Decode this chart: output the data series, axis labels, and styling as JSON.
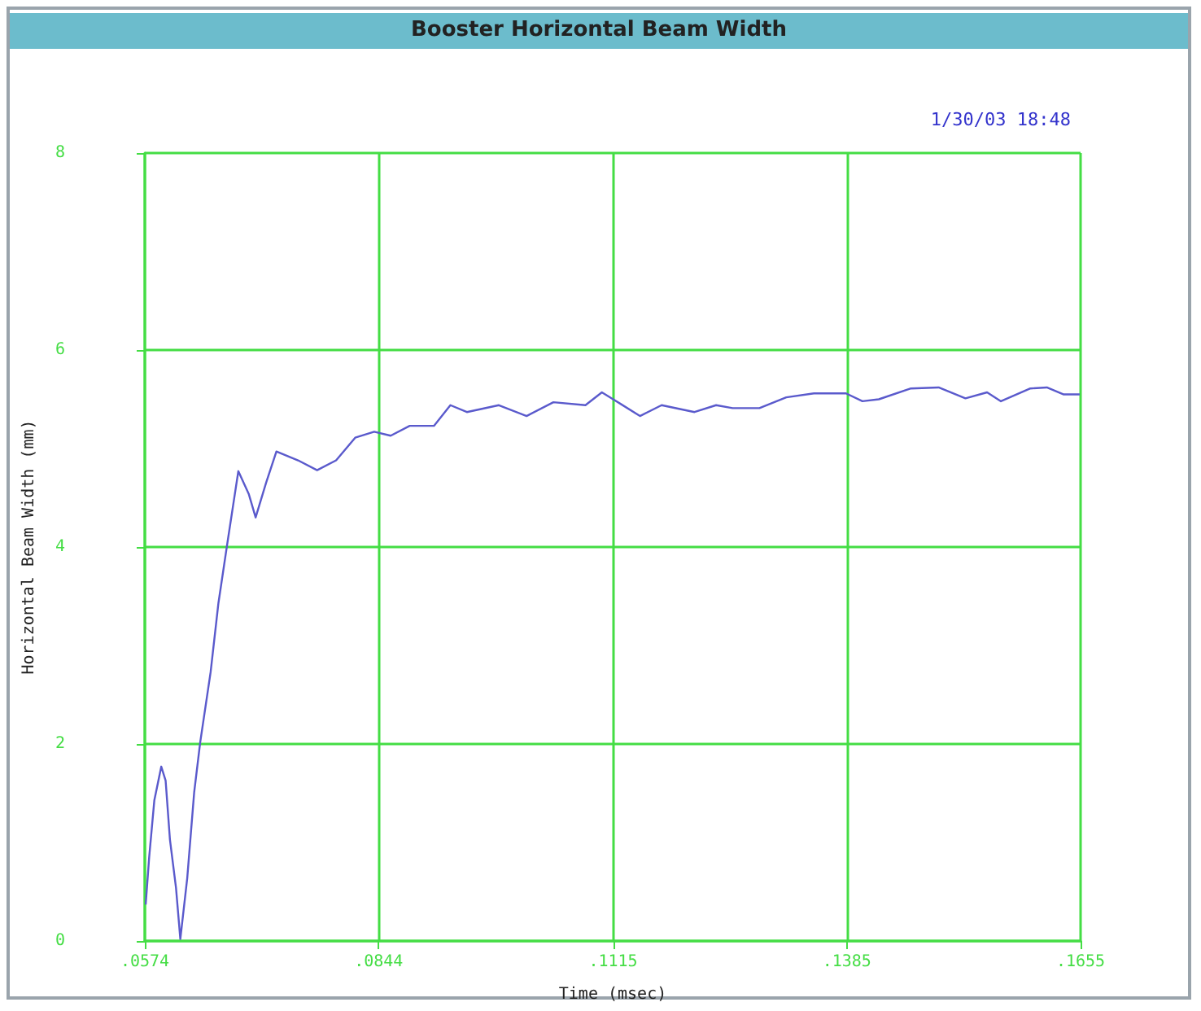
{
  "chart_data": {
    "type": "line",
    "title": "Booster Horizontal Beam Width",
    "xlabel": "Time (msec)",
    "ylabel": "Horizontal Beam Width (mm)",
    "annotations": [
      "1/30/03 18:48"
    ],
    "x": [
      0.0575,
      0.0579,
      0.0585,
      0.0593,
      0.0598,
      0.0603,
      0.061,
      0.0615,
      0.0623,
      0.0631,
      0.0638,
      0.065,
      0.0659,
      0.0669,
      0.0682,
      0.0694,
      0.0702,
      0.0714,
      0.0726,
      0.0751,
      0.0773,
      0.0795,
      0.0817,
      0.0839,
      0.0858,
      0.088,
      0.0908,
      0.0927,
      0.0946,
      0.0983,
      0.1015,
      0.1046,
      0.1083,
      0.1102,
      0.1115,
      0.1146,
      0.1171,
      0.1209,
      0.1234,
      0.1253,
      0.1284,
      0.1315,
      0.1347,
      0.1384,
      0.1403,
      0.1422,
      0.1459,
      0.1491,
      0.1522,
      0.1547,
      0.1563,
      0.1597,
      0.1616,
      0.1635,
      0.1654
    ],
    "series": [
      {
        "color": "#5a5acc",
        "values": [
          0.37,
          0.85,
          1.43,
          1.77,
          1.63,
          1.03,
          0.54,
          0.02,
          0.64,
          1.51,
          2.02,
          2.73,
          3.43,
          4.02,
          4.77,
          4.54,
          4.3,
          4.65,
          4.97,
          4.88,
          4.78,
          4.88,
          5.11,
          5.17,
          5.13,
          5.23,
          5.23,
          5.44,
          5.37,
          5.44,
          5.33,
          5.47,
          5.44,
          5.57,
          5.5,
          5.33,
          5.44,
          5.37,
          5.44,
          5.41,
          5.41,
          5.52,
          5.56,
          5.56,
          5.48,
          5.5,
          5.61,
          5.62,
          5.51,
          5.57,
          5.48,
          5.61,
          5.62,
          5.55,
          5.55
        ]
      }
    ],
    "xlim": [
      0.0574,
      0.1655
    ],
    "xticks": [
      {
        "value": 0.0574,
        "label": ".0574"
      },
      {
        "value": 0.0844,
        "label": ".0844"
      },
      {
        "value": 0.1115,
        "label": ".1115"
      },
      {
        "value": 0.1385,
        "label": ".1385"
      },
      {
        "value": 0.1655,
        "label": ".1655"
      }
    ],
    "ylim": [
      0,
      8
    ],
    "yticks": [
      0,
      2,
      4,
      6,
      8
    ],
    "grid": true,
    "marker": "none",
    "line_style": "solid"
  }
}
